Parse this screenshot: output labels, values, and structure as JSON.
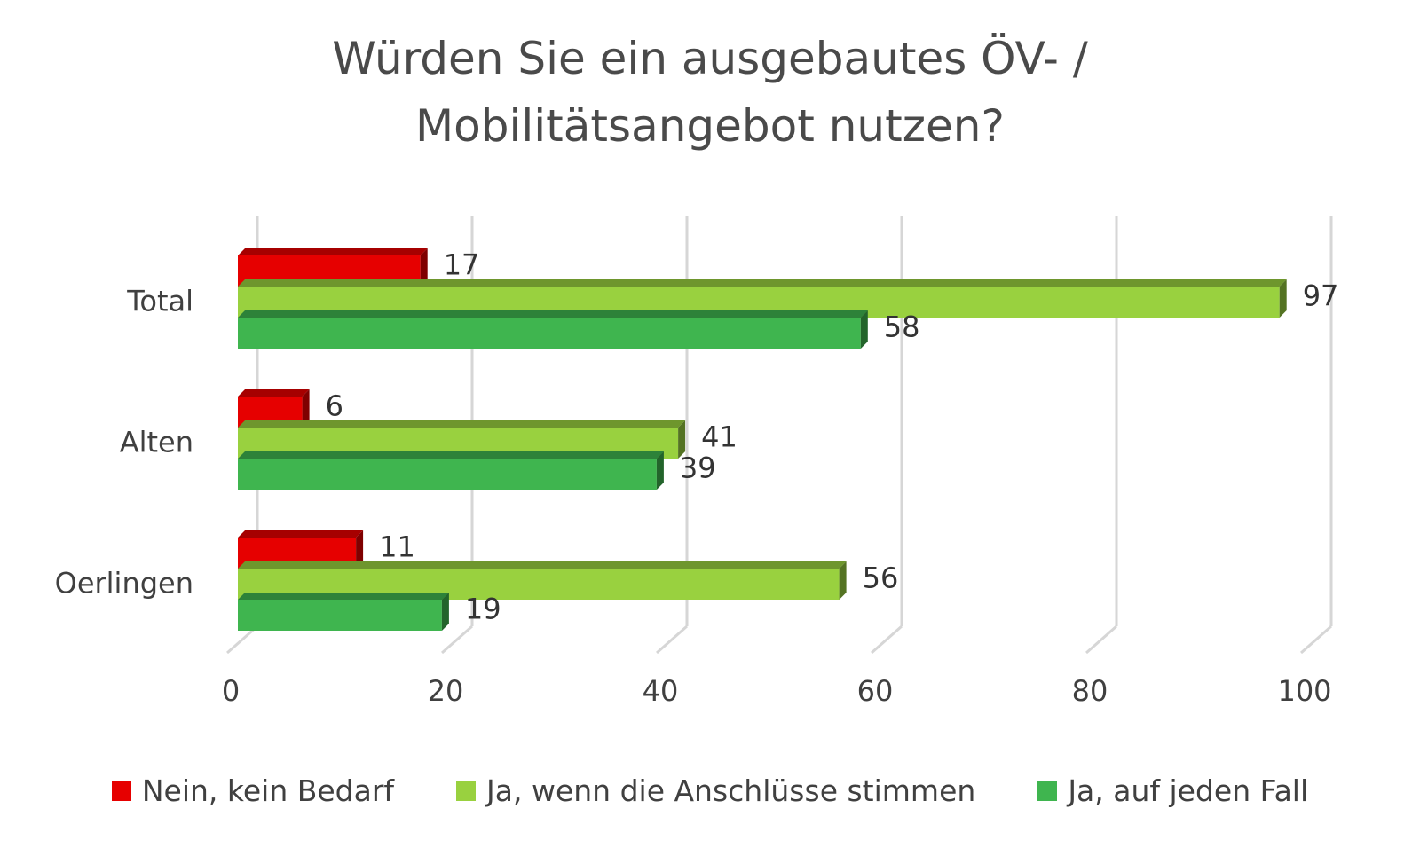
{
  "title_lines": [
    "Würden Sie ein ausgebautes ÖV- /",
    "Mobilitätsangebot nutzen?"
  ],
  "chart_data": {
    "type": "bar",
    "orientation": "horizontal",
    "style": "3d",
    "title": "Würden Sie ein ausgebautes ÖV- / Mobilitätsangebot nutzen?",
    "categories": [
      "Total",
      "Alten",
      "Oerlingen"
    ],
    "series": [
      {
        "name": "Nein, kein Bedarf",
        "color": "#e60000",
        "values": [
          17,
          6,
          11
        ]
      },
      {
        "name": "Ja, wenn die Anschlüsse stimmen",
        "color": "#99d13f",
        "values": [
          97,
          41,
          56
        ]
      },
      {
        "name": "Ja, auf jeden Fall",
        "color": "#3fb54f",
        "values": [
          58,
          39,
          19
        ]
      }
    ],
    "xlim": [
      0,
      100
    ],
    "xticks": [
      "0",
      "20",
      "40",
      "60",
      "80",
      "100"
    ],
    "grid": true,
    "legend_position": "bottom",
    "data_labels": true
  }
}
